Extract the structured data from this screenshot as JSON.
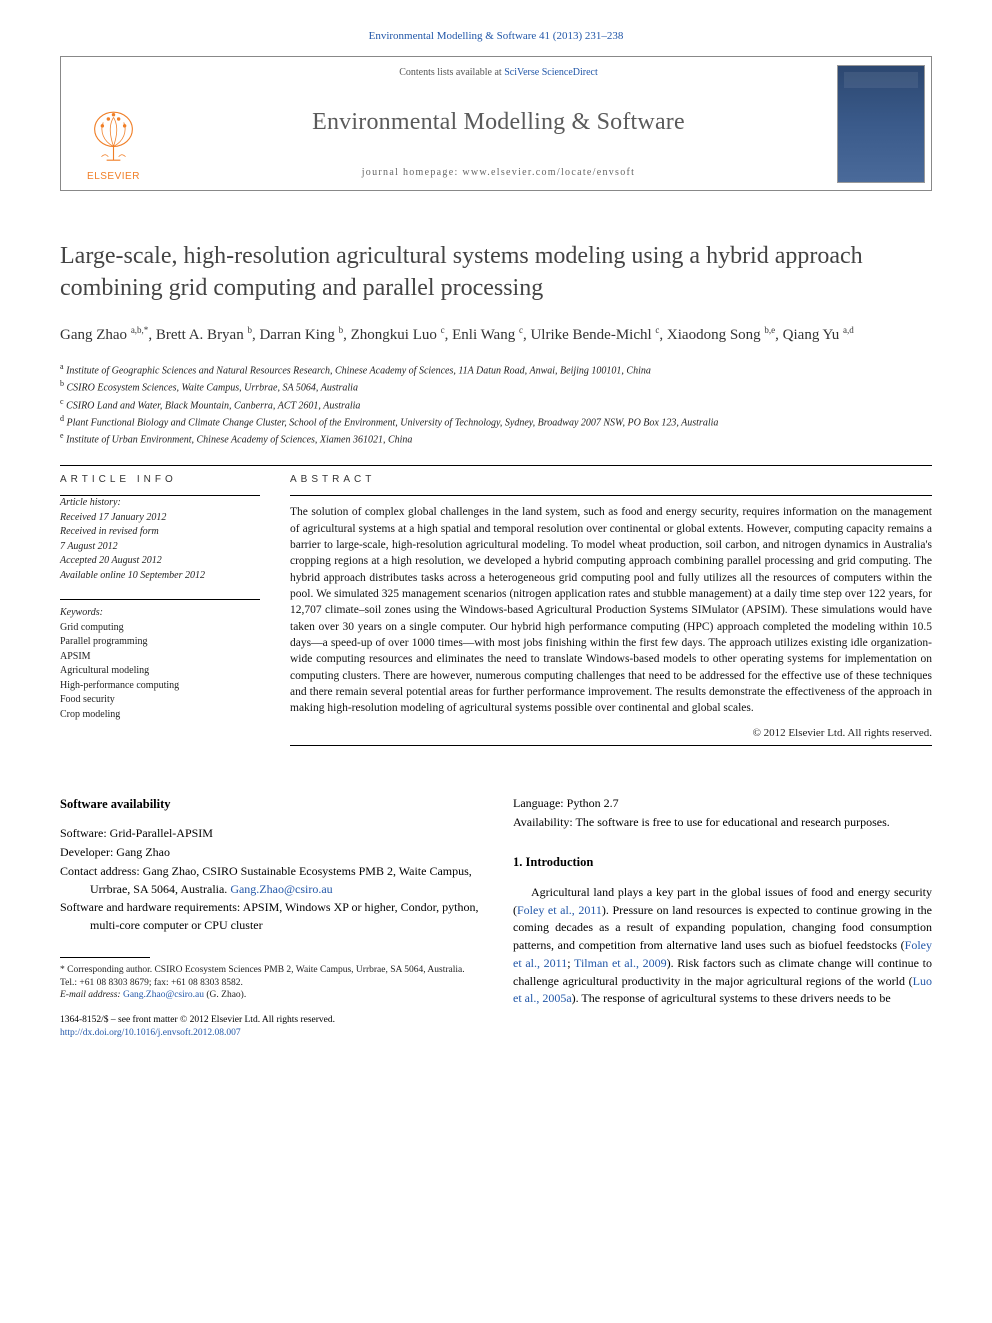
{
  "journal_ref": "Environmental Modelling & Software 41 (2013) 231–238",
  "header": {
    "contents_prefix": "Contents lists available at ",
    "contents_link": "SciVerse ScienceDirect",
    "journal_name": "Environmental Modelling & Software",
    "homepage": "journal homepage: www.elsevier.com/locate/envsoft",
    "publisher": "ELSEVIER"
  },
  "title": "Large-scale, high-resolution agricultural systems modeling using a hybrid approach combining grid computing and parallel processing",
  "authors_html": "Gang Zhao <sup>a,b,*</sup>, Brett A. Bryan <sup>b</sup>, Darran King <sup>b</sup>, Zhongkui Luo <sup>c</sup>, Enli Wang <sup>c</sup>, Ulrike Bende-Michl <sup>c</sup>, Xiaodong Song <sup>b,e</sup>, Qiang Yu <sup>a,d</sup>",
  "affiliations": [
    {
      "sup": "a",
      "text": "Institute of Geographic Sciences and Natural Resources Research, Chinese Academy of Sciences, 11A Datun Road, Anwai, Beijing 100101, China"
    },
    {
      "sup": "b",
      "text": "CSIRO Ecosystem Sciences, Waite Campus, Urrbrae, SA 5064, Australia"
    },
    {
      "sup": "c",
      "text": "CSIRO Land and Water, Black Mountain, Canberra, ACT 2601, Australia"
    },
    {
      "sup": "d",
      "text": "Plant Functional Biology and Climate Change Cluster, School of the Environment, University of Technology, Sydney, Broadway 2007 NSW, PO Box 123, Australia"
    },
    {
      "sup": "e",
      "text": "Institute of Urban Environment, Chinese Academy of Sciences, Xiamen 361021, China"
    }
  ],
  "article_info": {
    "head": "ARTICLE INFO",
    "history_label": "Article history:",
    "received": "Received 17 January 2012",
    "revised1": "Received in revised form",
    "revised2": "7 August 2012",
    "accepted": "Accepted 20 August 2012",
    "online": "Available online 10 September 2012",
    "kw_label": "Keywords:",
    "keywords": [
      "Grid computing",
      "Parallel programming",
      "APSIM",
      "Agricultural modeling",
      "High-performance computing",
      "Food security",
      "Crop modeling"
    ]
  },
  "abstract": {
    "head": "ABSTRACT",
    "text": "The solution of complex global challenges in the land system, such as food and energy security, requires information on the management of agricultural systems at a high spatial and temporal resolution over continental or global extents. However, computing capacity remains a barrier to large-scale, high-resolution agricultural modeling. To model wheat production, soil carbon, and nitrogen dynamics in Australia's cropping regions at a high resolution, we developed a hybrid computing approach combining parallel processing and grid computing. The hybrid approach distributes tasks across a heterogeneous grid computing pool and fully utilizes all the resources of computers within the pool. We simulated 325 management scenarios (nitrogen application rates and stubble management) at a daily time step over 122 years, for 12,707 climate–soil zones using the Windows-based Agricultural Production Systems SIMulator (APSIM). These simulations would have taken over 30 years on a single computer. Our hybrid high performance computing (HPC) approach completed the modeling within 10.5 days—a speed-up of over 1000 times—with most jobs finishing within the first few days. The approach utilizes existing idle organization-wide computing resources and eliminates the need to translate Windows-based models to other operating systems for implementation on computing clusters. There are however, numerous computing challenges that need to be addressed for the effective use of these techniques and there remain several potential areas for further performance improvement. The results demonstrate the effectiveness of the approach in making high-resolution modeling of agricultural systems possible over continental and global scales.",
    "copyright": "© 2012 Elsevier Ltd. All rights reserved."
  },
  "software": {
    "head": "Software availability",
    "lines": [
      "Software: Grid-Parallel-APSIM",
      "Developer: Gang Zhao"
    ],
    "contact_pre": "Contact address: Gang Zhao, CSIRO Sustainable Ecosystems PMB 2, Waite Campus, Urrbrae, SA 5064, Australia. ",
    "contact_link": "Gang.Zhao@csiro.au",
    "req": "Software and hardware requirements: APSIM, Windows XP or higher, Condor, python, multi-core computer or CPU cluster",
    "lang": "Language: Python 2.7",
    "avail": "Availability: The software is free to use for educational and research purposes."
  },
  "intro": {
    "head": "1.  Introduction",
    "p1_a": "Agricultural land plays a key part in the global issues of food and energy security (",
    "p1_cite1": "Foley et al., 2011",
    "p1_b": "). Pressure on land resources is expected to continue growing in the coming decades as a result of expanding population, changing food consumption patterns, and competition from alternative land uses such as biofuel feedstocks (",
    "p1_cite2": "Foley et al., 2011",
    "p1_c": "; ",
    "p1_cite3": "Tilman et al., 2009",
    "p1_d": "). Risk factors such as climate change will continue to challenge agricultural productivity in the major agricultural regions of the world (",
    "p1_cite4": "Luo et al., 2005a",
    "p1_e": "). The response of agricultural systems to these drivers needs to be"
  },
  "footnote": {
    "corr": "* Corresponding author. CSIRO Ecosystem Sciences PMB 2, Waite Campus, Urrbrae, SA 5064, Australia. Tel.: +61 08 8303 8679; fax: +61 08 8303 8582.",
    "email_label": "E-mail address: ",
    "email": "Gang.Zhao@csiro.au",
    "email_who": " (G. Zhao)."
  },
  "copyfoot": {
    "line1": "1364-8152/$ – see front matter © 2012 Elsevier Ltd. All rights reserved.",
    "doi": "http://dx.doi.org/10.1016/j.envsoft.2012.08.007"
  },
  "colors": {
    "link": "#2257a8",
    "elsevier_orange": "#f07e26",
    "title_gray": "#444444"
  }
}
